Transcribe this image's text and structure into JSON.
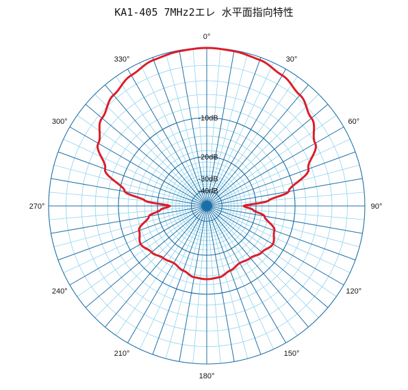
{
  "title": "KA1-405 7MHz2エレ 水平面指向特性",
  "chart_data": {
    "type": "polar",
    "title": "KA1-405 7MHz2エレ 水平面指向特性",
    "angle_labels": [
      {
        "deg": 0,
        "text": "0°"
      },
      {
        "deg": 30,
        "text": "30°"
      },
      {
        "deg": 60,
        "text": "60°"
      },
      {
        "deg": 90,
        "text": "90°"
      },
      {
        "deg": 120,
        "text": "120°"
      },
      {
        "deg": 150,
        "text": "150°"
      },
      {
        "deg": 180,
        "text": "180°"
      },
      {
        "deg": 210,
        "text": "210°"
      },
      {
        "deg": 240,
        "text": "240°"
      },
      {
        "deg": 270,
        "text": "270°"
      },
      {
        "deg": 300,
        "text": "300°"
      },
      {
        "deg": 330,
        "text": "330°"
      }
    ],
    "ring_labels": [
      {
        "db": -10,
        "text": "-10dB"
      },
      {
        "db": -20,
        "text": "-20dB"
      },
      {
        "db": -30,
        "text": "-30dB"
      },
      {
        "db": -40,
        "text": "-40dB"
      }
    ],
    "series": [
      {
        "color": "#dd1c2a",
        "angle_deg": [
          0,
          10,
          20,
          30,
          40,
          50,
          60,
          70,
          80,
          85,
          90,
          95,
          100,
          110,
          120,
          130,
          140,
          150,
          160,
          170,
          180,
          190,
          200,
          210,
          220,
          230,
          240,
          250,
          260,
          265,
          270,
          275,
          280,
          290,
          300,
          310,
          320,
          330,
          340,
          350
        ],
        "gain_db": [
          0,
          -0.1,
          -0.3,
          -0.8,
          -1.5,
          -2.5,
          -4,
          -6.5,
          -11,
          -16,
          -25,
          -21,
          -17,
          -13.5,
          -12.5,
          -13.5,
          -14.5,
          -15,
          -14.3,
          -13.4,
          -13.2,
          -13.4,
          -14.3,
          -15,
          -14.5,
          -13.5,
          -12.5,
          -13.5,
          -17,
          -21,
          -25,
          -16,
          -11,
          -6.5,
          -4,
          -2.5,
          -1.5,
          -0.8,
          -0.3,
          -0.1
        ]
      }
    ],
    "grid": true
  }
}
